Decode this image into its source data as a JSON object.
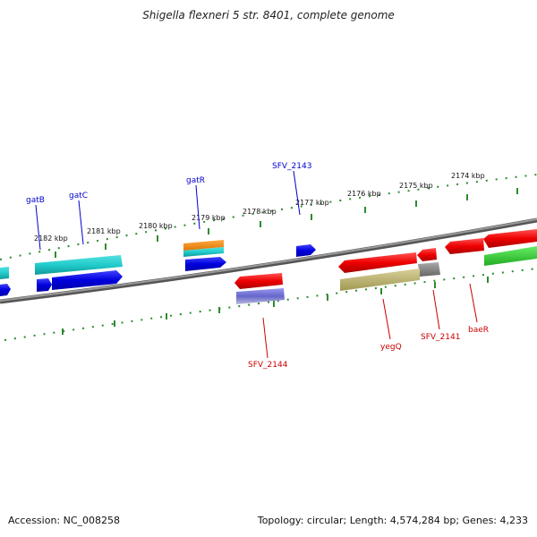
{
  "title": "Shigella flexneri 5 str. 8401, complete genome",
  "footer": {
    "accession": "Accession: NC_008258",
    "summary": "Topology: circular; Length: 4,574,284 bp; Genes: 4,233"
  },
  "scale_labels": [
    "2182 kbp",
    "2181 kbp",
    "2180 kbp",
    "2179 kbp",
    "2178 kbp",
    "2177 kbp",
    "2176 kbp",
    "2175 kbp",
    "2174 kbp"
  ],
  "genes_forward": [
    {
      "name": "gatB",
      "color": "#0000cc"
    },
    {
      "name": "gatC",
      "color": "#0000cc"
    },
    {
      "name": "gatR",
      "color": "#0000cc"
    },
    {
      "name": "SFV_2143",
      "color": "#0000cc"
    }
  ],
  "genes_reverse": [
    {
      "name": "SFV_2144",
      "color": "#cc0000"
    },
    {
      "name": "yegQ",
      "color": "#cc0000"
    },
    {
      "name": "SFV_2141",
      "color": "#cc0000"
    },
    {
      "name": "baeR",
      "color": "#cc0000"
    }
  ],
  "colors": {
    "backbone": "#808080",
    "scale_ticks": "#2e8b2e",
    "forward_gene": "#0000ee",
    "reverse_gene": "#ee0000",
    "cyan_feature": "#22cccc",
    "orange_feature": "#ff8800",
    "olive_feature": "#b8b070",
    "green_feature": "#33cc33",
    "purple_feature": "#7777cc",
    "gray_feature": "#888888"
  }
}
